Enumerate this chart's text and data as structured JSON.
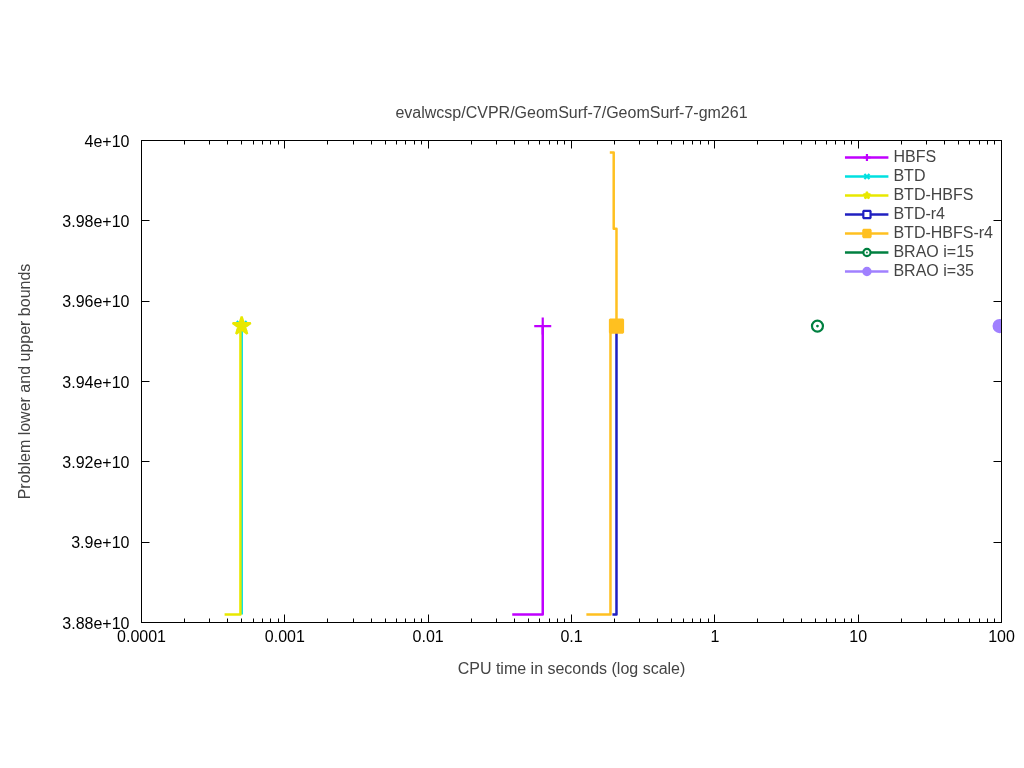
{
  "chart_data": {
    "type": "line",
    "title": "evalwcsp/CVPR/GeomSurf-7/GeomSurf-7-gm261",
    "xlabel": "CPU time in seconds (log scale)",
    "ylabel": "Problem lower and upper bounds",
    "log": "x",
    "xlim": [
      0.0001,
      100
    ],
    "xticks": [
      0.0001,
      0.001,
      0.01,
      0.1,
      1,
      10,
      100
    ],
    "ylim": [
      38800000000.0,
      40000000000.0
    ],
    "yticks": [
      {
        "value": 38800000000.0,
        "label": "3.88e+10"
      },
      {
        "value": 39000000000.0,
        "label": "3.9e+10"
      },
      {
        "value": 39200000000.0,
        "label": "3.92e+10"
      },
      {
        "value": 39400000000.0,
        "label": "3.94e+10"
      },
      {
        "value": 39600000000.0,
        "label": "3.96e+10"
      },
      {
        "value": 39800000000.0,
        "label": "3.98e+10"
      },
      {
        "value": 40000000000.0,
        "label": "4e+10"
      }
    ],
    "legend": "top right",
    "series": [
      {
        "name": "HBFS",
        "color": "#c000ff",
        "x": [
          0.0386,
          0.063,
          0.063
        ],
        "values": [
          38820000000.0,
          38820000000.0,
          39538000000.0
        ]
      },
      {
        "type": "scatter",
        "color": "#c000ff",
        "marker": "cross",
        "x": [
          0.063
        ],
        "values": [
          39538000000.0
        ]
      },
      {
        "name": "BTD",
        "color": "#00e0e0",
        "x": [
          0.0005,
          0.0005
        ],
        "values": [
          38820000000.0,
          39538000000.0
        ]
      },
      {
        "type": "scatter",
        "color": "#00e0e0",
        "marker": "x",
        "x": [
          0.0005
        ],
        "values": [
          39538000000.0
        ]
      },
      {
        "name": "BTD-HBFS",
        "color": "#e8e800",
        "x": [
          0.00038,
          0.00049,
          0.00049
        ],
        "values": [
          38820000000.0,
          38820000000.0,
          39538000000.0
        ]
      },
      {
        "type": "scatter",
        "color": "#e8e800",
        "marker": "star",
        "x": [
          0.0005
        ],
        "values": [
          39538000000.0
        ]
      },
      {
        "name": "BTD-r4",
        "color": "#2020c0",
        "x": [
          0.193,
          0.206,
          0.206
        ],
        "values": [
          38820000000.0,
          38820000000.0,
          39538000000.0
        ]
      },
      {
        "type": "scatter",
        "color": "#2020c0",
        "marker": "square_open",
        "x": [
          null
        ],
        "values": [
          null
        ]
      },
      {
        "name": "BTD-HBFS-r4",
        "color": "#ffc020",
        "x": [
          0.127,
          0.187,
          0.187,
          0.206,
          0.206,
          0.197,
          0.197,
          0.185
        ],
        "values": [
          38820000000.0,
          38820000000.0,
          39538000000.0,
          39538000000.0,
          39780000000.0,
          39780000000.0,
          39970000000.0,
          39970000000.0
        ]
      },
      {
        "type": "scatter",
        "color": "#ffc020",
        "marker": "square",
        "x": [
          0.206
        ],
        "values": [
          39538000000.0
        ]
      },
      {
        "name": "BRAO i=15",
        "type": "scatter",
        "color": "#008040",
        "marker": "circle_dot",
        "line_style": "solid",
        "x": [
          5.2
        ],
        "values": [
          39538000000.0
        ]
      },
      {
        "name": "BRAO i=35",
        "type": "scatter",
        "color": "#a080ff",
        "marker": "circle",
        "line_style": "solid",
        "x": [
          97
        ],
        "values": [
          39538000000.0
        ]
      }
    ]
  }
}
